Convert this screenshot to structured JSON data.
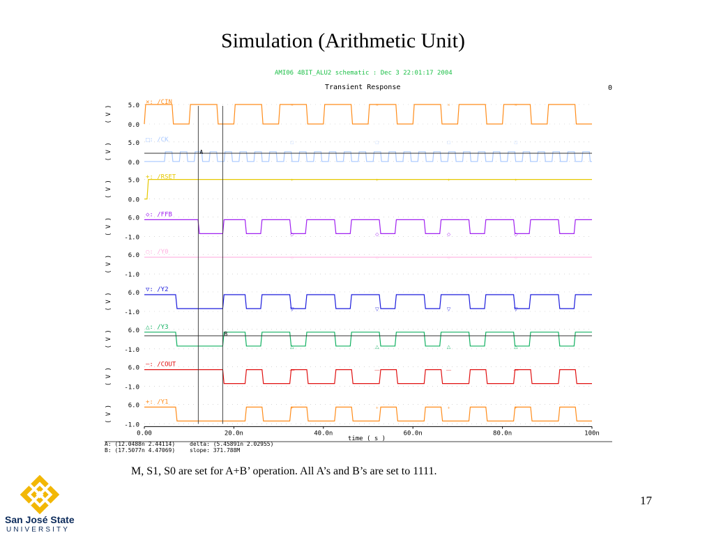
{
  "slide": {
    "title": "Simulation (Arithmetic Unit)",
    "caption": "M, S1, S0  are set for A+B’ operation. All A’s and B’s are set to 1111.",
    "page_number": "17"
  },
  "logo": {
    "name": "San José State",
    "subtitle": "UNIVERSITY"
  },
  "chart_data": {
    "type": "line",
    "header": "AMI06 4BIT_ALU2 schematic : Dec  3 22:01:17 2004",
    "title": "Transient Response",
    "corner_mark": "0",
    "xlabel": "time ( s )",
    "ylabel_unit": "( V )",
    "xlim": [
      0,
      100
    ],
    "xunit": "n",
    "xticks": [
      "0.00",
      "20.0n",
      "40.0n",
      "60.0n",
      "80.0n",
      "100n"
    ],
    "xtick_values": [
      0,
      20,
      40,
      60,
      80,
      100
    ],
    "cursors": [
      {
        "label": "A",
        "x": 12.0488,
        "readout": "A: (12.0488n 2.44114)"
      },
      {
        "label": "B",
        "x": 17.5077,
        "readout": "B: (17.5077n 4.47069)"
      }
    ],
    "delta_readout": "delta: (5.45891n 2.02955)",
    "slope_readout": "slope: 371.788M",
    "series": [
      {
        "name": "/CIN",
        "legend": "×: /CIN",
        "marker": "×",
        "color": "#ff8c1a",
        "yticks": [
          "5.0",
          "0.0"
        ],
        "ylim": [
          0,
          5
        ],
        "wave": "clock",
        "period": 10,
        "high_from": 0,
        "high_until": 7,
        "start": "high"
      },
      {
        "name": "/CK",
        "legend": "□: /CK",
        "marker": "□",
        "color": "#a8c8ff",
        "yticks": [
          "5.0",
          "0.0"
        ],
        "ylim": [
          0,
          5
        ],
        "wave": "clock_fast",
        "period": 3.33,
        "low": 0,
        "high": 2.5
      },
      {
        "name": "/RSET",
        "legend": "+: /RSET",
        "marker": "+",
        "color": "#e6c800",
        "yticks": [
          "5.0",
          "0.0"
        ],
        "ylim": [
          0,
          5
        ],
        "wave": "step",
        "rise_at": 0.6,
        "low": 0,
        "high": 5
      },
      {
        "name": "/FFB",
        "legend": "◇: /FFB",
        "marker": "◇",
        "color": "#a020f0",
        "yticks": [
          "6.0",
          "-1.0"
        ],
        "ylim": [
          -1,
          6
        ],
        "wave": "pulse",
        "period": 10,
        "first_low": [
          12,
          17.5
        ],
        "low_len": 3.5,
        "low_offset": 20,
        "high": 5,
        "low": 0
      },
      {
        "name": "/Y0",
        "legend": "○: /Y0",
        "marker": "○",
        "color": "#ffb0e0",
        "yticks": [
          "6.0",
          "-1.0"
        ],
        "ylim": [
          -1,
          6
        ],
        "wave": "flat",
        "high": 5
      },
      {
        "name": "/Y2",
        "legend": "▽: /Y2",
        "marker": "▽",
        "color": "#1a1adc",
        "yticks": [
          "6.0",
          "-1.0"
        ],
        "ylim": [
          -1,
          6
        ],
        "wave": "pulse",
        "period": 10,
        "first_low": [
          7,
          17.5
        ],
        "low_len": 3.5,
        "low_offset": 20,
        "high": 5,
        "low": 0
      },
      {
        "name": "/Y3",
        "legend": "△: /Y3",
        "marker": "△",
        "color": "#10b060",
        "yticks": [
          "6.0",
          "-1.0"
        ],
        "ylim": [
          -1,
          6
        ],
        "wave": "pulse",
        "period": 10,
        "first_low": [
          7,
          17.5
        ],
        "low_len": 3.5,
        "low_offset": 20,
        "high": 5,
        "low": 0
      },
      {
        "name": "/COUT",
        "legend": "—: /COUT",
        "marker": "—",
        "color": "#e01010",
        "yticks": [
          "6.0",
          "-1.0"
        ],
        "ylim": [
          -1,
          6
        ],
        "wave": "pulse_inv",
        "period": 10,
        "high_first": [
          0,
          17.5
        ],
        "low_offset": 20,
        "high": 5,
        "low": 0
      },
      {
        "name": "/Y1",
        "legend": "+: /Y1",
        "marker": "+",
        "color": "#ff8c1a",
        "yticks": [
          "6.0",
          "-1.0"
        ],
        "ylim": [
          -1,
          6
        ],
        "wave": "pulse_inv",
        "period": 10,
        "high_first": [
          0,
          7
        ],
        "low_offset": 20,
        "high": 5,
        "low": 0
      }
    ]
  }
}
